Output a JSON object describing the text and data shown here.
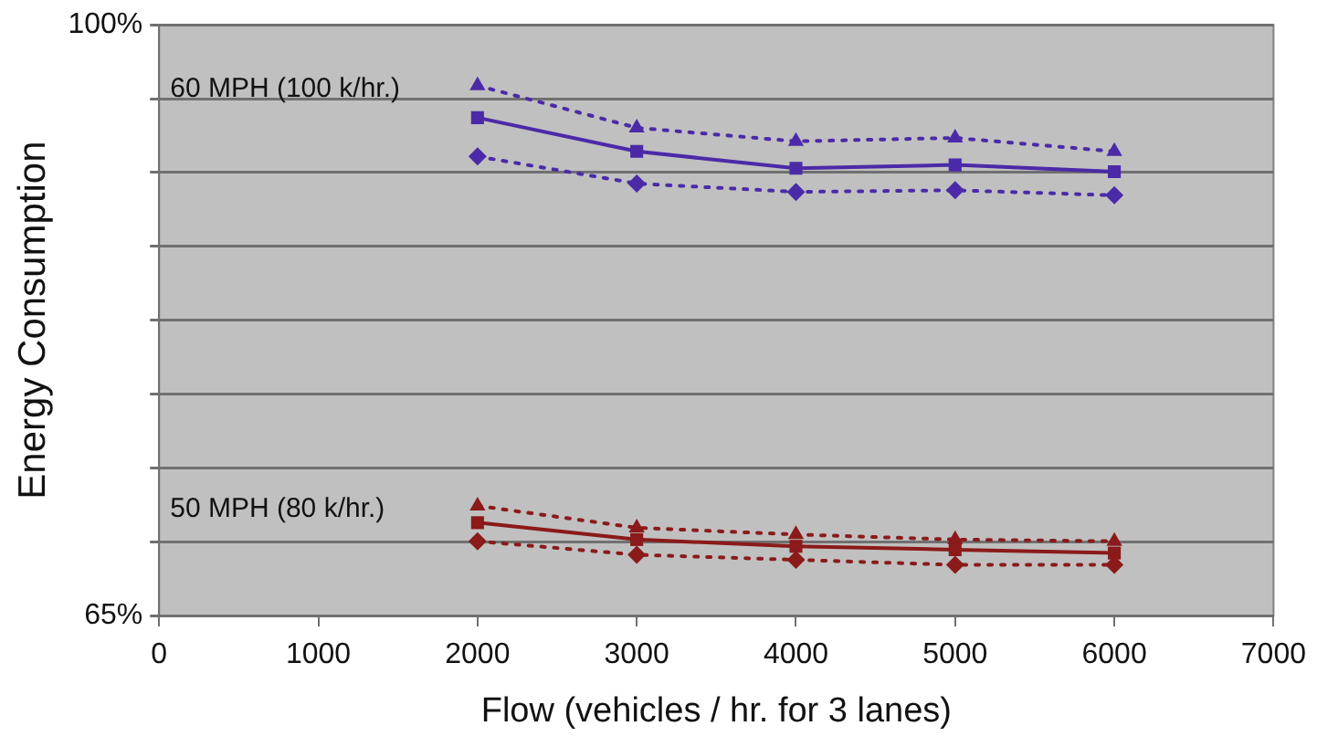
{
  "chart_data": {
    "type": "line",
    "xlabel": "Flow (vehicles / hr. for 3 lanes)",
    "ylabel": "Energy Consumption",
    "x": [
      2000,
      3000,
      4000,
      5000,
      6000
    ],
    "xlim": [
      0,
      7000
    ],
    "xticks": [
      0,
      1000,
      2000,
      3000,
      4000,
      5000,
      6000,
      7000
    ],
    "ylim": [
      65,
      100
    ],
    "yticks": [
      {
        "value": 65,
        "label": "65%"
      },
      {
        "value": 69.375,
        "label": null
      },
      {
        "value": 73.75,
        "label": null
      },
      {
        "value": 78.125,
        "label": null
      },
      {
        "value": 82.5,
        "label": null
      },
      {
        "value": 86.875,
        "label": null
      },
      {
        "value": 91.25,
        "label": null
      },
      {
        "value": 95.625,
        "label": null
      },
      {
        "value": 100,
        "label": "100%"
      }
    ],
    "grid": "y",
    "legend": false,
    "series": [
      {
        "color": "#4b2aa8",
        "marker": "triangle",
        "line_style": "dotted",
        "values": [
          96.4,
          93.9,
          93.1,
          93.3,
          92.5
        ]
      },
      {
        "color": "#4b2aa8",
        "marker": "square",
        "line_style": "solid",
        "values": [
          94.5,
          92.5,
          91.5,
          91.7,
          91.3
        ]
      },
      {
        "color": "#4b2aa8",
        "marker": "diamond",
        "line_style": "dotted",
        "values": [
          92.2,
          90.6,
          90.1,
          90.2,
          89.9
        ]
      },
      {
        "color": "#8b1a1a",
        "marker": "triangle",
        "line_style": "dotted",
        "values": [
          71.5,
          70.2,
          69.8,
          69.5,
          69.4
        ]
      },
      {
        "color": "#8b1a1a",
        "marker": "square",
        "line_style": "solid",
        "values": [
          70.5,
          69.5,
          69.1,
          68.9,
          68.7
        ]
      },
      {
        "color": "#8b1a1a",
        "marker": "diamond",
        "line_style": "dotted",
        "values": [
          69.4,
          68.6,
          68.3,
          68.0,
          68.0
        ]
      }
    ],
    "annotations": [
      "60 MPH (100 k/hr.)",
      "50 MPH (80 k/hr.)"
    ]
  }
}
